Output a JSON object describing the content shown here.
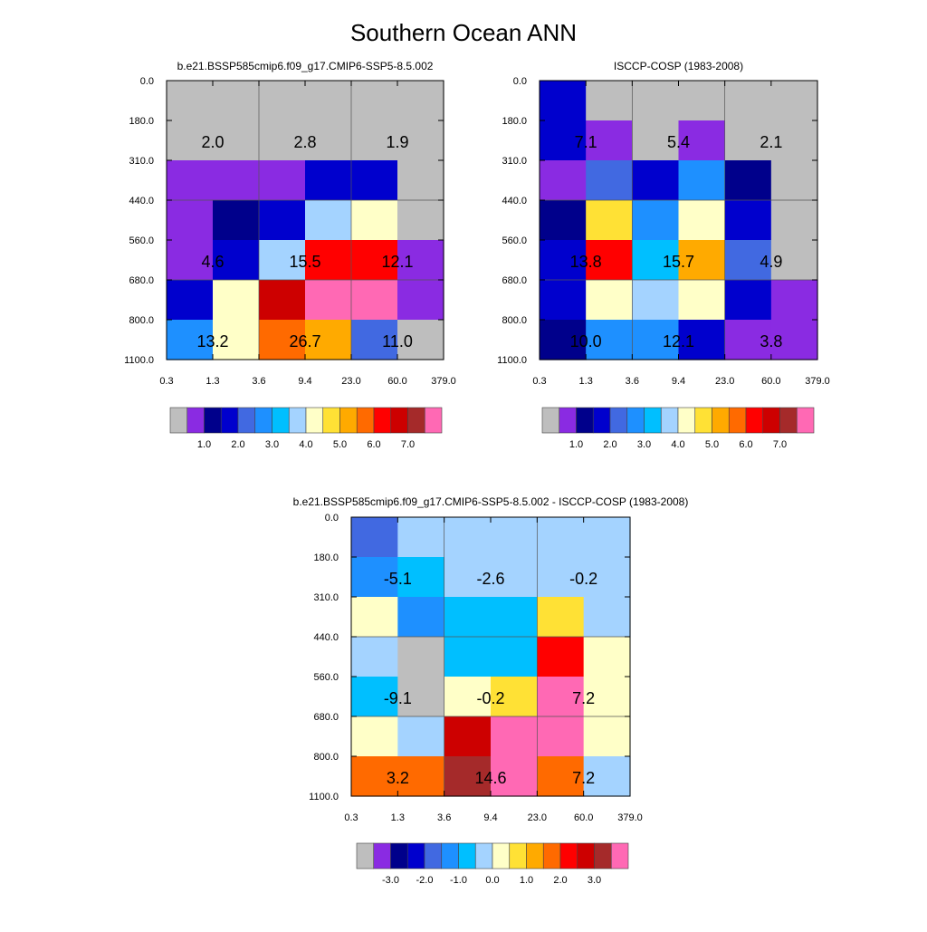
{
  "title": "Southern Ocean ANN",
  "colors": {
    "abs_palette": [
      "#bebebe",
      "#8a2be2",
      "#00008b",
      "#0000cd",
      "#4169e1",
      "#1e90ff",
      "#00bfff",
      "#a4d3ff",
      "#ffffc8",
      "#ffe135",
      "#ffaa00",
      "#ff6a00",
      "#ff0000",
      "#cd0000",
      "#a52a2a",
      "#ff69b4"
    ],
    "diff_palette": [
      "#bebebe",
      "#8a2be2",
      "#00008b",
      "#0000cd",
      "#4169e1",
      "#1e90ff",
      "#00bfff",
      "#a4d3ff",
      "#ffffc8",
      "#ffe135",
      "#ffaa00",
      "#ff6a00",
      "#ff0000",
      "#cd0000",
      "#a52a2a",
      "#ff69b4"
    ]
  },
  "chart_data": [
    {
      "type": "heatmap",
      "title": "b.e21.BSSP585cmip6.f09_g17.CMIP6-SSP5-8.5.002",
      "x_ticks": [
        "0.3",
        "1.3",
        "3.6",
        "9.4",
        "23.0",
        "60.0",
        "379.0"
      ],
      "y_ticks": [
        "0.0",
        "180.0",
        "310.0",
        "440.0",
        "560.0",
        "680.0",
        "800.0",
        "1100.0"
      ],
      "cells": [
        [
          0,
          0,
          0,
          0,
          0,
          0
        ],
        [
          0,
          0,
          0,
          0,
          0,
          0
        ],
        [
          1,
          1,
          1,
          3,
          3,
          0
        ],
        [
          1,
          2,
          3,
          7,
          8,
          0
        ],
        [
          1,
          3,
          7,
          12,
          12,
          1
        ],
        [
          3,
          8,
          13,
          15,
          15,
          1
        ],
        [
          5,
          8,
          11,
          10,
          4,
          0
        ]
      ],
      "annotations": [
        {
          "row": 1,
          "col": 0,
          "text": "2.0"
        },
        {
          "row": 1,
          "col": 1,
          "text": "2.8"
        },
        {
          "row": 1,
          "col": 2,
          "text": "1.9"
        },
        {
          "row": 4,
          "col": 0,
          "text": "4.6"
        },
        {
          "row": 4,
          "col": 1,
          "text": "15.5"
        },
        {
          "row": 4,
          "col": 2,
          "text": "12.1"
        },
        {
          "row": 6,
          "col": 0,
          "text": "13.2"
        },
        {
          "row": 6,
          "col": 1,
          "text": "26.7"
        },
        {
          "row": 6,
          "col": 2,
          "text": "11.0"
        }
      ],
      "colorbar_labels": [
        "1.0",
        "2.0",
        "3.0",
        "4.0",
        "5.0",
        "6.0",
        "7.0"
      ]
    },
    {
      "type": "heatmap",
      "title": "ISCCP-COSP (1983-2008)",
      "x_ticks": [
        "0.3",
        "1.3",
        "3.6",
        "9.4",
        "23.0",
        "60.0",
        "379.0"
      ],
      "y_ticks": [
        "0.0",
        "180.0",
        "310.0",
        "440.0",
        "560.0",
        "680.0",
        "800.0",
        "1100.0"
      ],
      "cells": [
        [
          3,
          0,
          0,
          0,
          0,
          0
        ],
        [
          3,
          1,
          0,
          1,
          0,
          0
        ],
        [
          1,
          4,
          3,
          5,
          2,
          0
        ],
        [
          2,
          9,
          5,
          8,
          3,
          0
        ],
        [
          3,
          12,
          6,
          10,
          4,
          0
        ],
        [
          3,
          8,
          7,
          8,
          3,
          1
        ],
        [
          2,
          5,
          5,
          3,
          1,
          1
        ]
      ],
      "annotations": [
        {
          "row": 1,
          "col": 0,
          "text": "7.1"
        },
        {
          "row": 1,
          "col": 1,
          "text": "5.4"
        },
        {
          "row": 1,
          "col": 2,
          "text": "2.1"
        },
        {
          "row": 4,
          "col": 0,
          "text": "13.8"
        },
        {
          "row": 4,
          "col": 1,
          "text": "15.7"
        },
        {
          "row": 4,
          "col": 2,
          "text": "4.9"
        },
        {
          "row": 6,
          "col": 0,
          "text": "10.0"
        },
        {
          "row": 6,
          "col": 1,
          "text": "12.1"
        },
        {
          "row": 6,
          "col": 2,
          "text": "3.8"
        }
      ],
      "colorbar_labels": [
        "1.0",
        "2.0",
        "3.0",
        "4.0",
        "5.0",
        "6.0",
        "7.0"
      ]
    },
    {
      "type": "heatmap",
      "title": "b.e21.BSSP585cmip6.f09_g17.CMIP6-SSP5-8.5.002 - ISCCP-COSP (1983-2008)",
      "x_ticks": [
        "0.3",
        "1.3",
        "3.6",
        "9.4",
        "23.0",
        "60.0",
        "379.0"
      ],
      "y_ticks": [
        "0.0",
        "180.0",
        "310.0",
        "440.0",
        "560.0",
        "680.0",
        "800.0",
        "1100.0"
      ],
      "cells": [
        [
          4,
          7,
          7,
          7,
          7,
          7
        ],
        [
          5,
          6,
          7,
          7,
          7,
          7
        ],
        [
          8,
          5,
          6,
          6,
          9,
          7
        ],
        [
          7,
          0,
          6,
          6,
          12,
          8
        ],
        [
          6,
          0,
          8,
          9,
          15,
          8
        ],
        [
          8,
          7,
          13,
          15,
          15,
          8
        ],
        [
          11,
          11,
          14,
          15,
          11,
          7
        ]
      ],
      "annotations": [
        {
          "row": 1,
          "col": 0,
          "text": "-5.1"
        },
        {
          "row": 1,
          "col": 1,
          "text": "-2.6"
        },
        {
          "row": 1,
          "col": 2,
          "text": "-0.2"
        },
        {
          "row": 4,
          "col": 0,
          "text": "-9.1"
        },
        {
          "row": 4,
          "col": 1,
          "text": "-0.2"
        },
        {
          "row": 4,
          "col": 2,
          "text": "7.2"
        },
        {
          "row": 6,
          "col": 0,
          "text": "3.2"
        },
        {
          "row": 6,
          "col": 1,
          "text": "14.6"
        },
        {
          "row": 6,
          "col": 2,
          "text": "7.2"
        }
      ],
      "colorbar_labels": [
        "-3.0",
        "-2.0",
        "-1.0",
        "0.0",
        "1.0",
        "2.0",
        "3.0"
      ]
    }
  ]
}
